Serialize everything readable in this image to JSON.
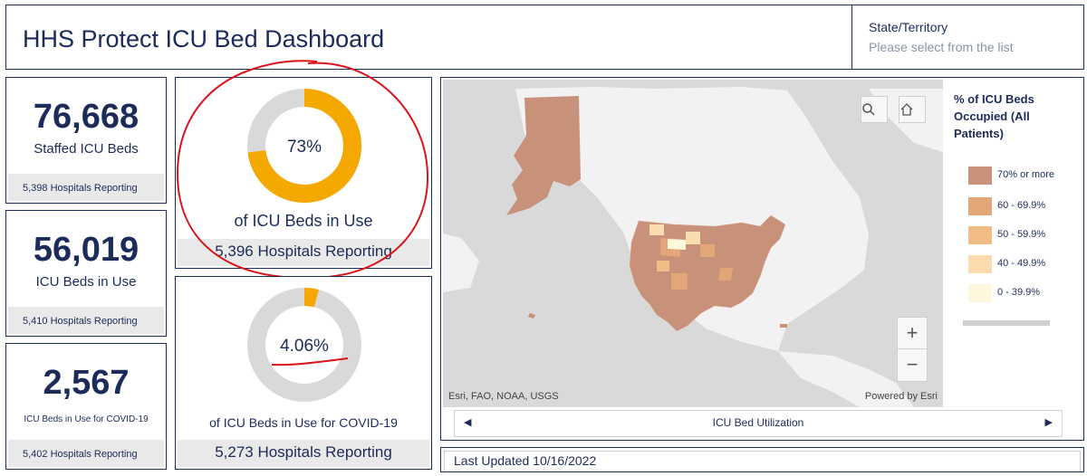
{
  "header": {
    "title": "HHS Protect ICU Bed Dashboard",
    "state_label": "State/Territory",
    "state_placeholder": "Please select from the list"
  },
  "cards": [
    {
      "value": "76,668",
      "label": "Staffed ICU Beds",
      "footer": "5,398 Hospitals Reporting"
    },
    {
      "value": "56,019",
      "label": "ICU Beds in Use",
      "footer": "5,410 Hospitals Reporting"
    },
    {
      "value": "2,567",
      "label": "ICU Beds in Use for COVID-19",
      "footer": "5,402 Hospitals Reporting"
    }
  ],
  "gauges": [
    {
      "percent_text": "73%",
      "fraction": 0.73,
      "caption": "of ICU Beds in Use",
      "footer": "5,396 Hospitals Reporting"
    },
    {
      "percent_text": "4.06%",
      "fraction": 0.0406,
      "caption": "of ICU Beds in Use for COVID-19",
      "footer": "5,273 Hospitals Reporting"
    }
  ],
  "colors": {
    "navy": "#1c2b59",
    "gauge_fill": "#f5a800",
    "gauge_track": "#d9d9d9",
    "annotation": "#d9141a",
    "map_bg": "#d9d9d9",
    "land": "#f2f2f2"
  },
  "map": {
    "attribution_left": "Esri, FAO, NOAA, USGS",
    "attribution_right": "Powered by Esri",
    "footer_label": "ICU Bed Utilization",
    "search_icon": "magnifier-icon",
    "home_icon": "home-icon"
  },
  "legend": {
    "title": "% of ICU Beds Occupied (All Patients)",
    "items": [
      {
        "label": "70% or more",
        "color": "#c8917a"
      },
      {
        "label": "60 - 69.9%",
        "color": "#e3a678"
      },
      {
        "label": "50 - 59.9%",
        "color": "#f2bd85"
      },
      {
        "label": "40 - 49.9%",
        "color": "#fbdcb0"
      },
      {
        "label": "0 - 39.9%",
        "color": "#fdf7db"
      }
    ]
  },
  "last_updated": "Last Updated 10/16/2022"
}
